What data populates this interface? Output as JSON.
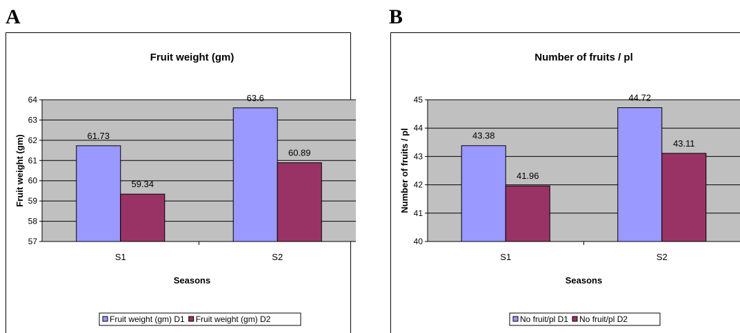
{
  "panels": [
    {
      "letter": "A"
    },
    {
      "letter": "B"
    }
  ],
  "chart_data": [
    {
      "type": "bar",
      "title": "Fruit weight (gm)",
      "xlabel": "Seasons",
      "ylabel": "Fruit weight (gm)",
      "ylim": [
        57,
        64
      ],
      "yticks": [
        57,
        58,
        59,
        60,
        61,
        62,
        63,
        64
      ],
      "categories": [
        "S1",
        "S2"
      ],
      "series": [
        {
          "name": "Fruit weight (gm) D1",
          "values": [
            61.73,
            63.6
          ],
          "color": "#9999ff"
        },
        {
          "name": "Fruit weight (gm) D2",
          "values": [
            59.34,
            60.89
          ],
          "color": "#993366"
        }
      ],
      "data_labels": [
        [
          "61.73",
          "63.6"
        ],
        [
          "59.34",
          "60.89"
        ]
      ],
      "grid": true,
      "legend": "bottom",
      "plot_background": "#c0c0c0"
    },
    {
      "type": "bar",
      "title": "Number  of fruits / pl",
      "xlabel": "Seasons",
      "ylabel": "Number of fruits / pl",
      "ylim": [
        40,
        45
      ],
      "yticks": [
        40,
        41,
        42,
        43,
        44,
        45
      ],
      "categories": [
        "S1",
        "S2"
      ],
      "series": [
        {
          "name": "No fruit/pl D1",
          "values": [
            43.38,
            44.72
          ],
          "color": "#9999ff"
        },
        {
          "name": "No fruit/pl D2",
          "values": [
            41.96,
            43.11
          ],
          "color": "#993366"
        }
      ],
      "data_labels": [
        [
          "43.38",
          "44.72"
        ],
        [
          "41.96",
          "43.11"
        ]
      ],
      "grid": true,
      "legend": "bottom",
      "plot_background": "#c0c0c0"
    }
  ]
}
